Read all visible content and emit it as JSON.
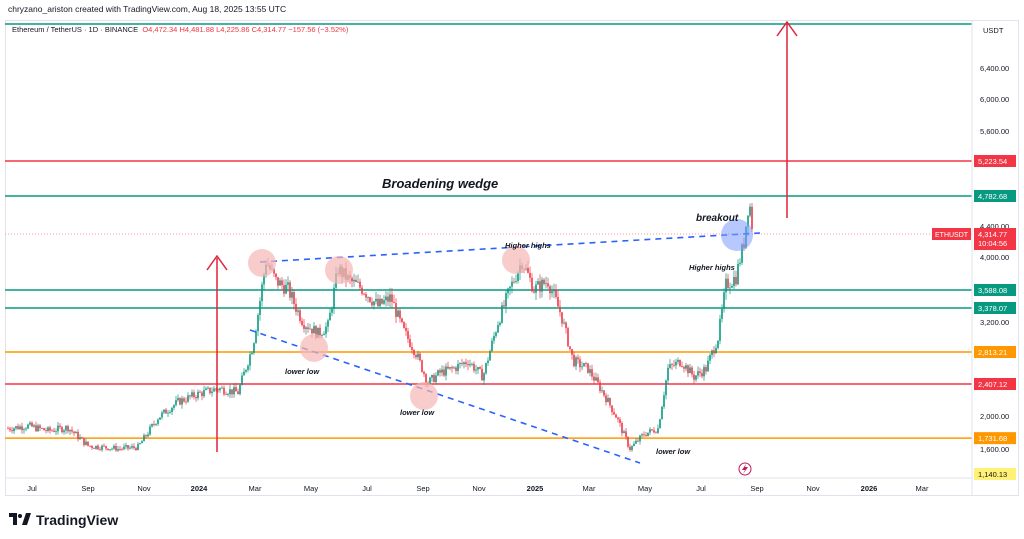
{
  "header": {
    "credit": "chryzano_ariston created with TradingView.com, Aug 18, 2025 13:55 UTC",
    "symbol": "Ethereum / TetherUS · 1D · BINANCE",
    "ohlc": "O4,472.34  H4,481.88  L4,225.86  C4,314.77  −157.56 (−3.52%)"
  },
  "footer": {
    "brand": "TradingView",
    "brand_icon": "tradingview-logo-icon"
  },
  "colors": {
    "green": "#089981",
    "red": "#f23645",
    "orange": "#ff9800",
    "blue": "#2962ff",
    "pink": "#f7b6b6",
    "crimson": "#e0223a",
    "yellow": "#fff176"
  },
  "chart_data": {
    "type": "candlestick",
    "title": "Broadening wedge",
    "quote": "USDT",
    "ticker_label": "ETHUSDT",
    "current_price": 4314.77,
    "current_price_label": "4,314.77",
    "countdown": "10:04:56",
    "x_ticks": [
      "Jul",
      "Sep",
      "Nov",
      "2024",
      "Mar",
      "May",
      "Jul",
      "Sep",
      "Nov",
      "2025",
      "Mar",
      "May",
      "Jul",
      "Sep",
      "Nov",
      "2026",
      "Mar"
    ],
    "y_ticks": [
      "6,400.00",
      "6,000.00",
      "5,600.00",
      "4,400.00",
      "4,000.00",
      "3,200.00",
      "2,000.00",
      "1,600.00"
    ],
    "levels": [
      {
        "label": "5,223.54",
        "value": 5223.54,
        "color": "red"
      },
      {
        "label": "4,782.68",
        "value": 4782.68,
        "color": "green"
      },
      {
        "label": "3,588.08",
        "value": 3588.08,
        "color": "green"
      },
      {
        "label": "3,378.07",
        "value": 3378.07,
        "color": "green"
      },
      {
        "label": "2,813.21",
        "value": 2813.21,
        "color": "orange"
      },
      {
        "label": "2,407.12",
        "value": 2407.12,
        "color": "red"
      },
      {
        "label": "1,731.68",
        "value": 1731.68,
        "color": "orange"
      },
      {
        "label": "1,140.13",
        "value": 1140.13,
        "color": "yellow"
      }
    ],
    "annotations": {
      "breakout": "breakout",
      "higher_highs_1": "Higher highs",
      "higher_highs_2": "Higher highs",
      "lower_low_1": "lower low",
      "lower_low_2": "lower low",
      "lower_low_3": "lower low"
    },
    "price_path": [
      [
        0,
        1850
      ],
      [
        20,
        1880
      ],
      [
        40,
        1820
      ],
      [
        60,
        1860
      ],
      [
        80,
        1640
      ],
      [
        110,
        1600
      ],
      [
        130,
        1620
      ],
      [
        150,
        1980
      ],
      [
        170,
        2180
      ],
      [
        190,
        2280
      ],
      [
        210,
        2350
      ],
      [
        230,
        2300
      ],
      [
        245,
        2900
      ],
      [
        258,
        3950
      ],
      [
        268,
        3700
      ],
      [
        280,
        3600
      ],
      [
        295,
        3200
      ],
      [
        310,
        3050
      ],
      [
        320,
        3150
      ],
      [
        330,
        3850
      ],
      [
        342,
        3700
      ],
      [
        355,
        3600
      ],
      [
        370,
        3400
      ],
      [
        383,
        3500
      ],
      [
        395,
        3100
      ],
      [
        408,
        2800
      ],
      [
        420,
        2420
      ],
      [
        432,
        2550
      ],
      [
        445,
        2600
      ],
      [
        460,
        2700
      ],
      [
        475,
        2500
      ],
      [
        490,
        3200
      ],
      [
        502,
        3600
      ],
      [
        514,
        3950
      ],
      [
        526,
        3600
      ],
      [
        540,
        3700
      ],
      [
        553,
        3300
      ],
      [
        565,
        2700
      ],
      [
        580,
        2600
      ],
      [
        595,
        2300
      ],
      [
        608,
        2000
      ],
      [
        622,
        1600
      ],
      [
        636,
        1780
      ],
      [
        650,
        1850
      ],
      [
        660,
        2600
      ],
      [
        673,
        2700
      ],
      [
        686,
        2500
      ],
      [
        698,
        2600
      ],
      [
        710,
        3000
      ],
      [
        718,
        3650
      ],
      [
        728,
        3750
      ],
      [
        736,
        4200
      ],
      [
        741,
        4750
      ],
      [
        745,
        4314
      ]
    ]
  }
}
